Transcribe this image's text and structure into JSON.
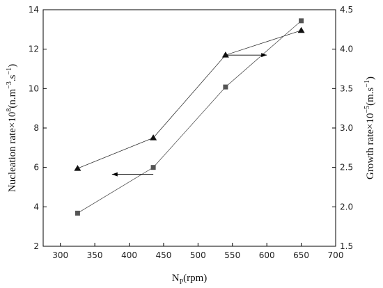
{
  "chart_data": {
    "type": "line",
    "x": [
      325,
      435,
      540,
      650
    ],
    "xlabel": {
      "base": "N",
      "sub": "P",
      "rest": "(rpm)"
    },
    "xlim": [
      275,
      700
    ],
    "xticks": [
      300,
      350,
      400,
      450,
      500,
      550,
      600,
      650,
      700
    ],
    "y_left": {
      "label": {
        "pre": "Nucleation rate×10",
        "sup1": "8",
        "mid": "(n.m",
        "sup2": "−3",
        "mid2": ".s",
        "sup3": "−1",
        "post": ")"
      },
      "ylim": [
        2,
        14
      ],
      "ticks": [
        2,
        4,
        6,
        8,
        10,
        12,
        14
      ]
    },
    "y_right": {
      "label": {
        "pre": "Growth rate×10",
        "sup1": "−5",
        "mid": "(m.s",
        "sup2": "−1",
        "post": ")"
      },
      "ylim": [
        1.5,
        4.5
      ],
      "ticks": [
        "1.5",
        "2.0",
        "2.5",
        "3.0",
        "3.5",
        "4.0",
        "4.5"
      ]
    },
    "series": [
      {
        "axis": "left",
        "marker": "triangle",
        "color": "#333333",
        "values": [
          5.95,
          7.5,
          11.7,
          12.95
        ]
      },
      {
        "axis": "right",
        "marker": "square",
        "color": "#555555",
        "values": [
          1.92,
          2.5,
          3.52,
          4.36
        ]
      }
    ],
    "annotations": [
      {
        "type": "arrow",
        "direction": "left",
        "from": [
          435,
          5.65
        ],
        "to": [
          375,
          5.65
        ]
      },
      {
        "type": "arrow",
        "direction": "right",
        "from": [
          540,
          11.7
        ],
        "to": [
          600,
          11.7
        ]
      }
    ],
    "grid": false,
    "legend": "none"
  }
}
